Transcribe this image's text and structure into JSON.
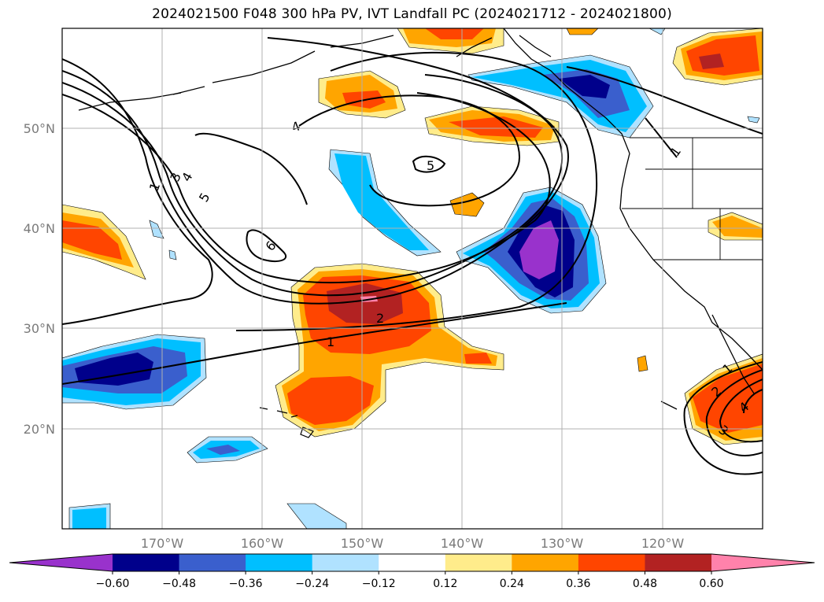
{
  "title": "2024021500 F048 300 hPa PV, IVT Landfall PC (2024021712 - 2024021800)",
  "lat_labels": [
    "50°N",
    "40°N",
    "30°N",
    "20°N"
  ],
  "lon_labels": [
    "170°W",
    "160°W",
    "150°W",
    "140°W",
    "130°W",
    "120°W"
  ],
  "colorbar": {
    "ticks": [
      "−0.60",
      "−0.48",
      "−0.36",
      "−0.24",
      "−0.12",
      "0.12",
      "0.24",
      "0.36",
      "0.48",
      "0.60"
    ],
    "colors": [
      "#9932cc",
      "#00008b",
      "#3a5fcd",
      "#00bfff",
      "#b0e2ff",
      "#ffffff",
      "#ffec8b",
      "#ffa500",
      "#ff4500",
      "#b22222",
      "#ff82ab"
    ]
  },
  "contour_labels": [
    "1",
    "3",
    "4",
    "5",
    "6",
    "4",
    "5",
    "2",
    "1",
    "1",
    "2",
    "3",
    "4",
    "1"
  ]
}
